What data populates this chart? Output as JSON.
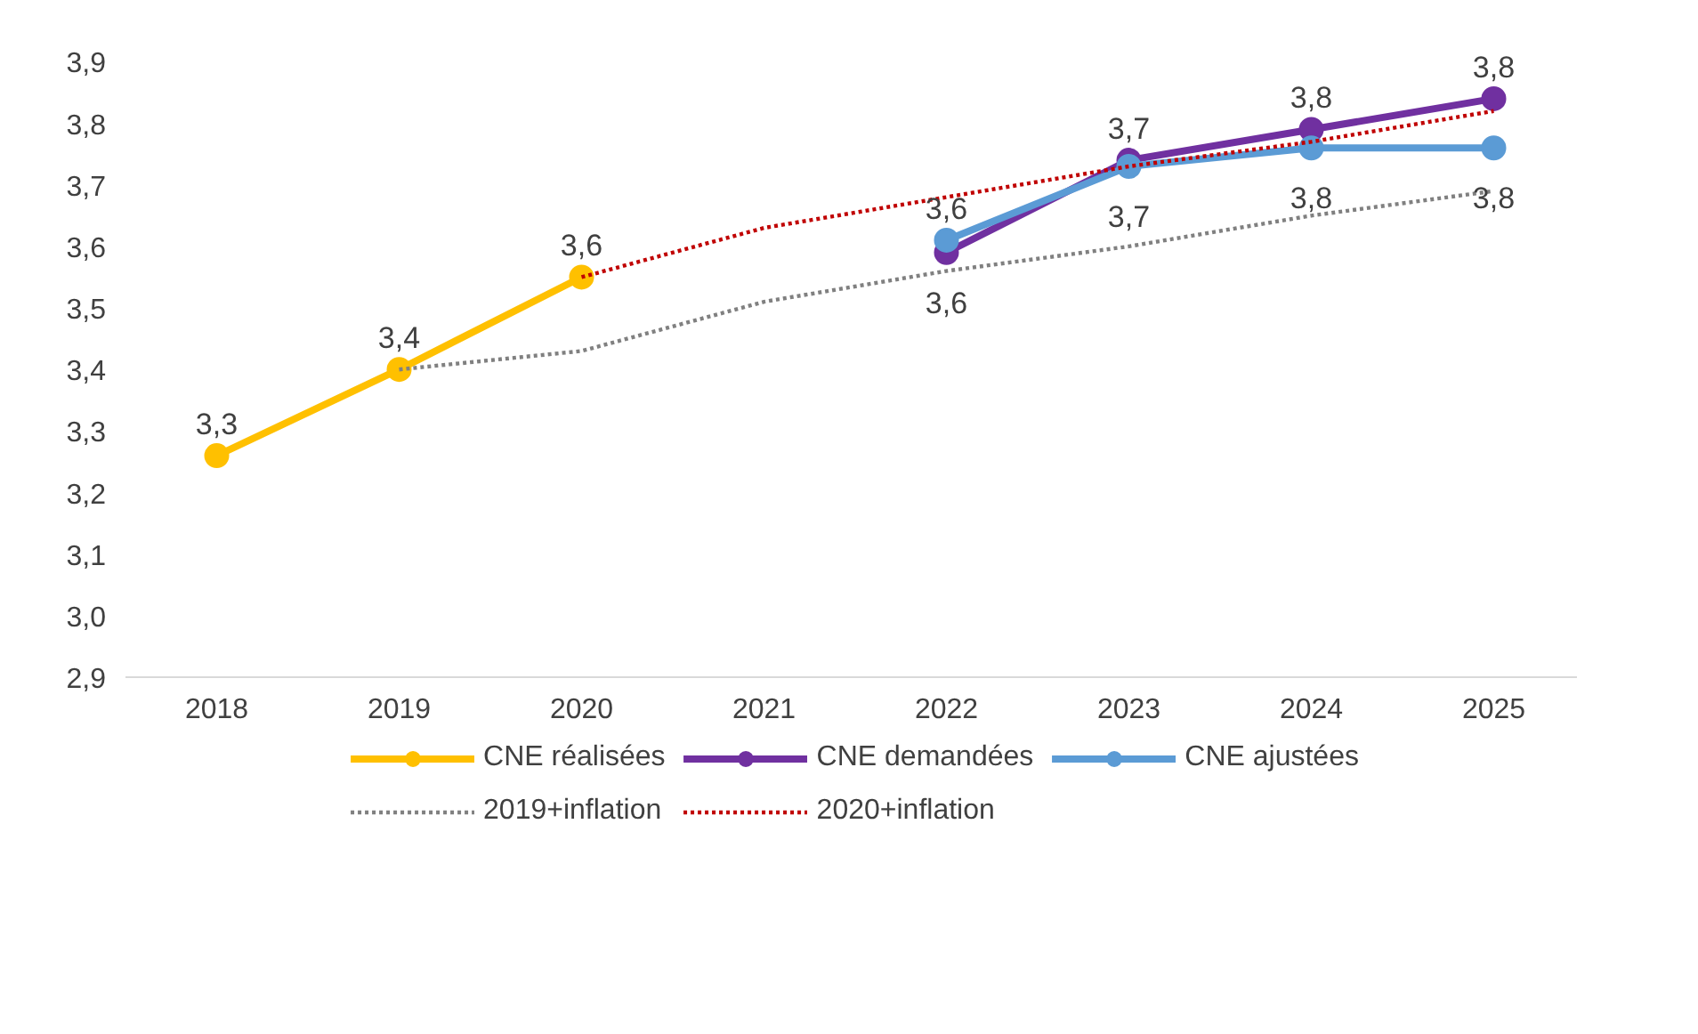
{
  "chart_data": {
    "type": "line",
    "categories": [
      "2018",
      "2019",
      "2020",
      "2021",
      "2022",
      "2023",
      "2024",
      "2025"
    ],
    "series": [
      {
        "name": "CNE réalisées",
        "color": "#ffc000",
        "values": [
          3.26,
          3.4,
          3.55,
          null,
          null,
          null,
          null,
          null
        ],
        "marker": "circle",
        "line_style": "solid",
        "value_labels": [
          "3,3",
          "3,4",
          "3,6",
          null,
          null,
          null,
          null,
          null
        ]
      },
      {
        "name": "CNE demandées",
        "color": "#7030a0",
        "values": [
          null,
          null,
          null,
          null,
          3.59,
          3.74,
          3.79,
          3.84
        ],
        "marker": "circle",
        "line_style": "solid",
        "value_labels": [
          null,
          null,
          null,
          null,
          "3,6",
          "3,7",
          "3,8",
          "3,8"
        ]
      },
      {
        "name": "CNE ajustées",
        "color": "#5b9bd5",
        "values": [
          null,
          null,
          null,
          null,
          3.61,
          3.73,
          3.76,
          3.76
        ],
        "marker": "circle",
        "line_style": "solid",
        "value_labels": [
          null,
          null,
          null,
          null,
          "3,6",
          "3,7",
          "3,8",
          "3,8"
        ]
      },
      {
        "name": "2019+inflation",
        "color": "#808080",
        "values": [
          null,
          3.4,
          3.43,
          3.51,
          3.56,
          3.6,
          3.65,
          3.69
        ],
        "marker": "none",
        "line_style": "dotted"
      },
      {
        "name": "2020+inflation",
        "color": "#c00000",
        "values": [
          null,
          null,
          3.55,
          3.63,
          3.68,
          3.73,
          3.77,
          3.82
        ],
        "marker": "none",
        "line_style": "dotted"
      }
    ],
    "ylim": [
      2.9,
      3.9
    ],
    "yticks": [
      {
        "value": 2.9,
        "label": "2,9"
      },
      {
        "value": 3.0,
        "label": "3,0"
      },
      {
        "value": 3.1,
        "label": "3,1"
      },
      {
        "value": 3.2,
        "label": "3,2"
      },
      {
        "value": 3.3,
        "label": "3,3"
      },
      {
        "value": 3.4,
        "label": "3,4"
      },
      {
        "value": 3.5,
        "label": "3,5"
      },
      {
        "value": 3.6,
        "label": "3,6"
      },
      {
        "value": 3.7,
        "label": "3,7"
      },
      {
        "value": 3.8,
        "label": "3,8"
      },
      {
        "value": 3.9,
        "label": "3,9"
      }
    ],
    "grid": false,
    "legend": "bottom"
  }
}
